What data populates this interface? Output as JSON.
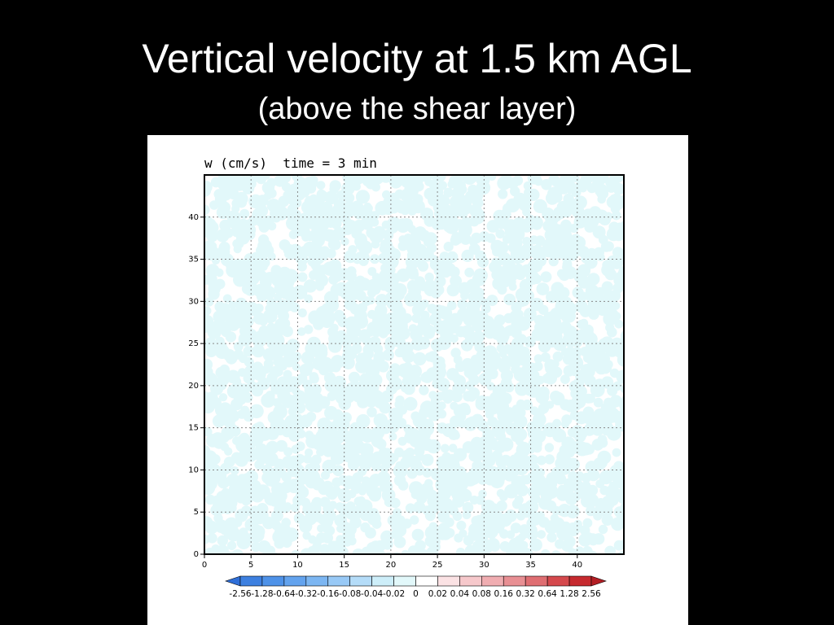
{
  "slide": {
    "title": "Vertical velocity at 1.5 km AGL",
    "subtitle": "(above the shear layer)"
  },
  "chart_data": {
    "type": "heatmap",
    "field": "w",
    "header": "w (cm/s)  time = 3 min",
    "xlabel": "",
    "ylabel": "",
    "xlim": [
      0,
      45
    ],
    "ylim": [
      0,
      45
    ],
    "x_ticks": [
      0,
      5,
      10,
      15,
      20,
      25,
      30,
      35,
      40
    ],
    "y_ticks": [
      0,
      5,
      10,
      15,
      20,
      25,
      30,
      35,
      40
    ],
    "grid": true,
    "pattern": "random small-scale noise alternating between the -0.02 to 0 and 0 to 0.02 cm/s levels",
    "colorbar": {
      "placement": "bottom",
      "levels": [
        "-2.56",
        "-1.28",
        "-0.64",
        "-0.32",
        "-0.16",
        "-0.08",
        "-0.04",
        "-0.02",
        "0",
        "0.02",
        "0.04",
        "0.08",
        "0.16",
        "0.32",
        "0.64",
        "1.28",
        "2.56"
      ],
      "colors": [
        "#2f6fd8",
        "#3d80e0",
        "#4e92e8",
        "#63a3ee",
        "#7cb6f2",
        "#98c9f6",
        "#b4dcf8",
        "#cdeef9",
        "#e2f8fa",
        "#ffffff",
        "#fbe2e4",
        "#f6c8cb",
        "#f0adb1",
        "#e88f93",
        "#df6e72",
        "#d5494d",
        "#c62a2f",
        "#b31e24"
      ]
    }
  }
}
